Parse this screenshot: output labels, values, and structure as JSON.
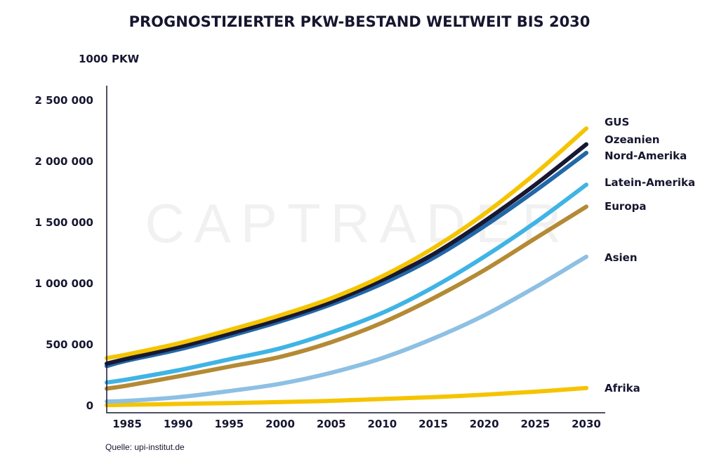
{
  "chart_data": {
    "type": "line",
    "title": "PROGNOSTIZIERTER PKW-BESTAND WELTWEIT BIS 2030",
    "ylabel": "1000 PKW",
    "xlabel": "",
    "watermark": "CAPTRADER",
    "source": "Quelle: upi-institut.de",
    "ylim": [
      0,
      2500000
    ],
    "xlim": [
      1983,
      2030
    ],
    "x_ticks": [
      "1985",
      "1990",
      "1995",
      "2000",
      "2005",
      "2010",
      "2015",
      "2020",
      "2025",
      "2030"
    ],
    "y_ticks": [
      {
        "value": 0,
        "label": "0"
      },
      {
        "value": 500000,
        "label": "500 000"
      },
      {
        "value": 1000000,
        "label": "1 000 000"
      },
      {
        "value": 1500000,
        "label": "1 500 000"
      },
      {
        "value": 2000000,
        "label": "2 000 000"
      },
      {
        "value": 2500000,
        "label": "2 500 000"
      }
    ],
    "x": [
      1983,
      1985,
      1990,
      1995,
      2000,
      2005,
      2010,
      2015,
      2020,
      2025,
      2030
    ],
    "series": [
      {
        "name": "Afrika",
        "color": "#f5c400",
        "values": [
          5000,
          8000,
          15000,
          22000,
          30000,
          40000,
          55000,
          70000,
          90000,
          115000,
          145000
        ]
      },
      {
        "name": "Asien",
        "color": "#8dc0e3",
        "values": [
          35000,
          40000,
          70000,
          120000,
          180000,
          270000,
          390000,
          550000,
          740000,
          970000,
          1220000
        ]
      },
      {
        "name": "Europa",
        "color": "#b48a35",
        "values": [
          140000,
          165000,
          240000,
          320000,
          400000,
          520000,
          680000,
          880000,
          1110000,
          1370000,
          1630000
        ]
      },
      {
        "name": "Latein-Amerika",
        "color": "#3fb4e5",
        "values": [
          190000,
          215000,
          290000,
          380000,
          470000,
          600000,
          760000,
          970000,
          1220000,
          1500000,
          1810000
        ]
      },
      {
        "name": "Nord-Amerika",
        "color": "#2268a8",
        "values": [
          325000,
          370000,
          460000,
          570000,
          690000,
          830000,
          1000000,
          1210000,
          1470000,
          1760000,
          2070000
        ]
      },
      {
        "name": "Ozeanien",
        "color": "#181832",
        "values": [
          345000,
          385000,
          480000,
          590000,
          710000,
          850000,
          1030000,
          1240000,
          1510000,
          1810000,
          2140000
        ]
      },
      {
        "name": "GUS",
        "color": "#f5c400",
        "values": [
          390000,
          420000,
          510000,
          620000,
          740000,
          880000,
          1060000,
          1290000,
          1570000,
          1900000,
          2270000
        ]
      }
    ],
    "legend_order": [
      "GUS",
      "Ozeanien",
      "Nord-Amerika",
      "Latein-Amerika",
      "Europa",
      "Asien",
      "Afrika"
    ],
    "legend_placement": "right, at line ends",
    "grid": false
  }
}
